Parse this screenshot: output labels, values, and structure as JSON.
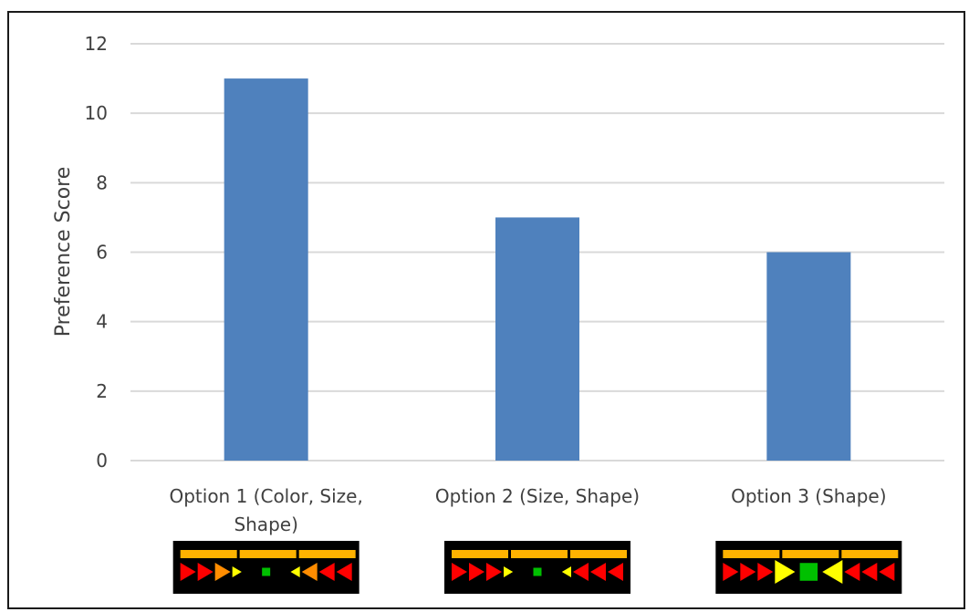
{
  "chart_data": {
    "type": "bar",
    "title": "",
    "xlabel": "",
    "ylabel": "Preference Score",
    "ylim": [
      0,
      12
    ],
    "yticks": [
      0,
      2,
      4,
      6,
      8,
      10,
      12
    ],
    "grid": true,
    "legend": "none",
    "bar_color": "#4f81bd",
    "categories": [
      [
        "Option 1 (Color, Size,",
        "Shape)"
      ],
      [
        "Option 2 (Size, Shape)"
      ],
      [
        "Option 3 (Shape)"
      ]
    ],
    "values": [
      11,
      7,
      6
    ]
  },
  "indicator_palette": {
    "background": "#000000",
    "bar": "#ffb300",
    "red": "#ff0000",
    "orange": "#ff8c00",
    "yellow": "#ffff00",
    "green": "#00c000"
  },
  "indicators": [
    {
      "left": [
        {
          "dir": "right",
          "color": "red",
          "size": "m"
        },
        {
          "dir": "right",
          "color": "red",
          "size": "m"
        },
        {
          "dir": "right",
          "color": "orange",
          "size": "m"
        },
        {
          "dir": "right",
          "color": "yellow",
          "size": "s"
        }
      ],
      "center": {
        "color": "green",
        "size": "s"
      },
      "right": [
        {
          "dir": "left",
          "color": "yellow",
          "size": "s"
        },
        {
          "dir": "left",
          "color": "orange",
          "size": "m"
        },
        {
          "dir": "left",
          "color": "red",
          "size": "m"
        },
        {
          "dir": "left",
          "color": "red",
          "size": "m"
        }
      ]
    },
    {
      "left": [
        {
          "dir": "right",
          "color": "red",
          "size": "m"
        },
        {
          "dir": "right",
          "color": "red",
          "size": "m"
        },
        {
          "dir": "right",
          "color": "red",
          "size": "m"
        },
        {
          "dir": "right",
          "color": "yellow",
          "size": "s"
        }
      ],
      "center": {
        "color": "green",
        "size": "s"
      },
      "right": [
        {
          "dir": "left",
          "color": "yellow",
          "size": "s"
        },
        {
          "dir": "left",
          "color": "red",
          "size": "m"
        },
        {
          "dir": "left",
          "color": "red",
          "size": "m"
        },
        {
          "dir": "left",
          "color": "red",
          "size": "m"
        }
      ]
    },
    {
      "left": [
        {
          "dir": "right",
          "color": "red",
          "size": "m"
        },
        {
          "dir": "right",
          "color": "red",
          "size": "m"
        },
        {
          "dir": "right",
          "color": "red",
          "size": "m"
        },
        {
          "dir": "right",
          "color": "yellow",
          "size": "l"
        }
      ],
      "center": {
        "color": "green",
        "size": "l"
      },
      "right": [
        {
          "dir": "left",
          "color": "yellow",
          "size": "l"
        },
        {
          "dir": "left",
          "color": "red",
          "size": "m"
        },
        {
          "dir": "left",
          "color": "red",
          "size": "m"
        },
        {
          "dir": "left",
          "color": "red",
          "size": "m"
        }
      ]
    }
  ]
}
